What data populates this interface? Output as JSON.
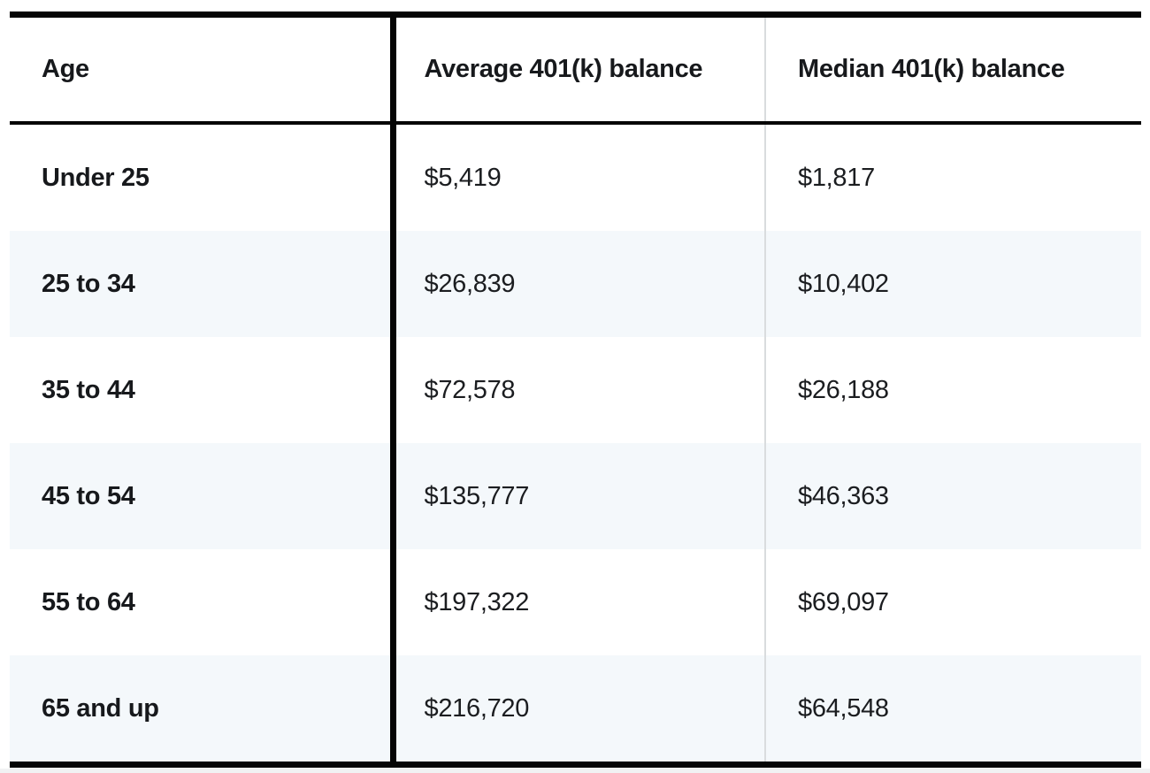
{
  "table": {
    "name": "401k balance by age",
    "columns": [
      {
        "label": "Age"
      },
      {
        "label": "Average 401(k) balance"
      },
      {
        "label": "Median 401(k) balance"
      }
    ],
    "rows": [
      {
        "age": "Under 25",
        "average": "$5,419",
        "median": "$1,817"
      },
      {
        "age": "25 to 34",
        "average": "$26,839",
        "median": "$10,402"
      },
      {
        "age": "35 to 44",
        "average": "$72,578",
        "median": "$26,188"
      },
      {
        "age": "45 to 54",
        "average": "$135,777",
        "median": "$46,363"
      },
      {
        "age": "55 to 64",
        "average": "$197,322",
        "median": "$69,097"
      },
      {
        "age": "65 and up",
        "average": "$216,720",
        "median": "$64,548"
      }
    ],
    "colors": {
      "border_black": "#050505",
      "divider_gray": "#d9dcde",
      "row_alt_blue": "#f4f8fb",
      "text": "#17191c",
      "bottom_strip": "#f1f2f3"
    }
  },
  "chart_data": {
    "type": "table",
    "title": "",
    "columns": [
      "Age",
      "Average 401(k) balance",
      "Median 401(k) balance"
    ],
    "rows": [
      [
        "Under 25",
        "$5,419",
        "$1,817"
      ],
      [
        "25 to 34",
        "$26,839",
        "$10,402"
      ],
      [
        "35 to 44",
        "$72,578",
        "$26,188"
      ],
      [
        "45 to 54",
        "$135,777",
        "$46,363"
      ],
      [
        "55 to 64",
        "$197,322",
        "$69,097"
      ],
      [
        "65 and up",
        "$216,720",
        "$64,548"
      ]
    ],
    "categories": [
      "Under 25",
      "25 to 34",
      "35 to 44",
      "45 to 54",
      "55 to 64",
      "65 and up"
    ],
    "series": [
      {
        "name": "Average 401(k) balance",
        "values": [
          5419,
          26839,
          72578,
          135777,
          197322,
          216720
        ]
      },
      {
        "name": "Median 401(k) balance",
        "values": [
          1817,
          10402,
          26188,
          46363,
          69097,
          64548
        ]
      }
    ],
    "layout": {
      "row_striping": true,
      "stripe_color": "#f4f8fb",
      "header_position": "top"
    }
  }
}
